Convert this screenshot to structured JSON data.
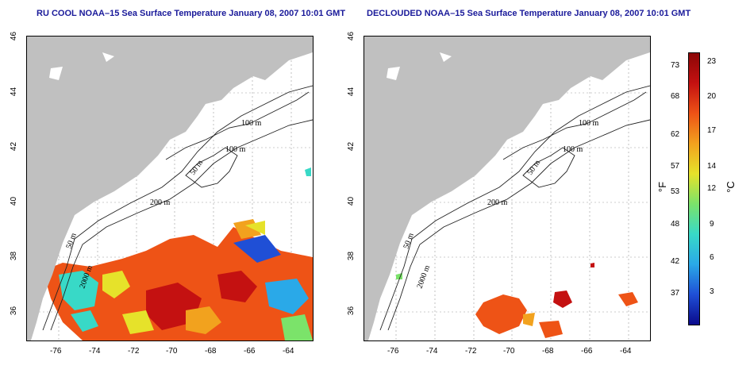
{
  "left_panel": {
    "title": "RU COOL NOAA–15 Sea Surface Temperature January 08, 2007 10:01 GMT"
  },
  "right_panel": {
    "title": "DECLOUDED NOAA–15 Sea Surface Temperature January 08, 2007 10:01 GMT"
  },
  "axes": {
    "x_ticks": [
      "-76",
      "-74",
      "-72",
      "-70",
      "-68",
      "-66",
      "-64"
    ],
    "y_ticks": [
      "46",
      "44",
      "42",
      "40",
      "38",
      "36"
    ]
  },
  "contours": {
    "label_100a": "100 m",
    "label_100b": "100 m",
    "label_50a": "50 m",
    "label_200": "200 m",
    "label_50b": "50 m",
    "label_2000": "2000 m"
  },
  "colorbar": {
    "f_ticks": [
      "73",
      "68",
      "62",
      "57",
      "53",
      "48",
      "42",
      "37"
    ],
    "c_ticks": [
      "23",
      "20",
      "17",
      "14",
      "12",
      "9",
      "6",
      "3"
    ],
    "f_unit": "°F",
    "c_unit": "°C",
    "colors": [
      "#0a0a8c",
      "#1f4fd6",
      "#2aa9e8",
      "#38d9c7",
      "#7be36a",
      "#e6e22a",
      "#f2a21e",
      "#ee5316",
      "#c41111",
      "#8c0606"
    ]
  }
}
